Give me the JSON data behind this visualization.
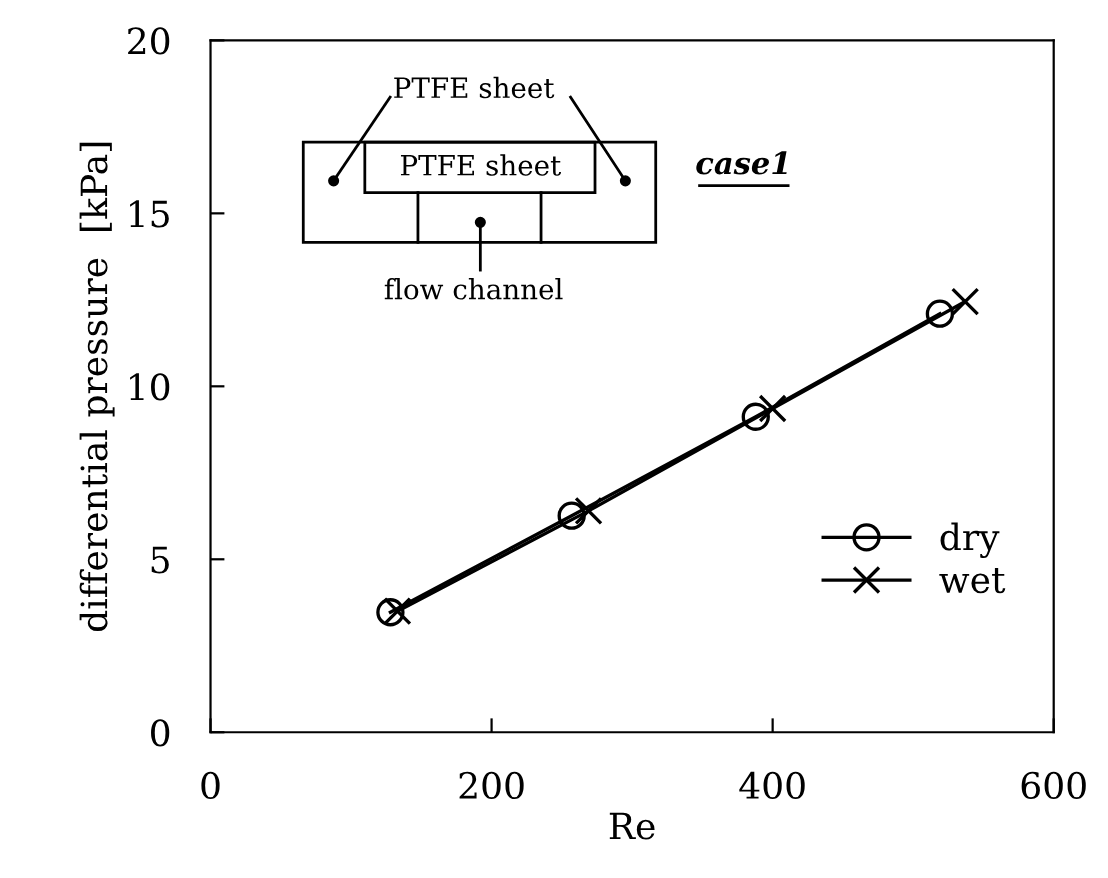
{
  "chart_data": {
    "type": "line",
    "xlabel": "Re",
    "ylabel": "differential pressure  [kPa]",
    "xlim": [
      0,
      600
    ],
    "xticks": [
      0,
      200,
      400,
      600
    ],
    "ylim": [
      0,
      20
    ],
    "yticks": [
      0,
      5,
      10,
      15,
      20
    ],
    "series": [
      {
        "name": "dry",
        "color": "#000000",
        "marker": "circle",
        "x": [
          128,
          257,
          388,
          519
        ],
        "values": [
          3.47,
          6.26,
          9.12,
          12.1
        ]
      },
      {
        "name": "wet",
        "color": "#000000",
        "marker": "cross",
        "x": [
          133,
          269,
          400,
          537
        ],
        "values": [
          3.5,
          6.4,
          9.36,
          12.45
        ]
      }
    ],
    "annotations": [
      "PTFE sheet",
      "PTFE sheet",
      "flow channel",
      "case1"
    ],
    "legend": "bottom right"
  }
}
